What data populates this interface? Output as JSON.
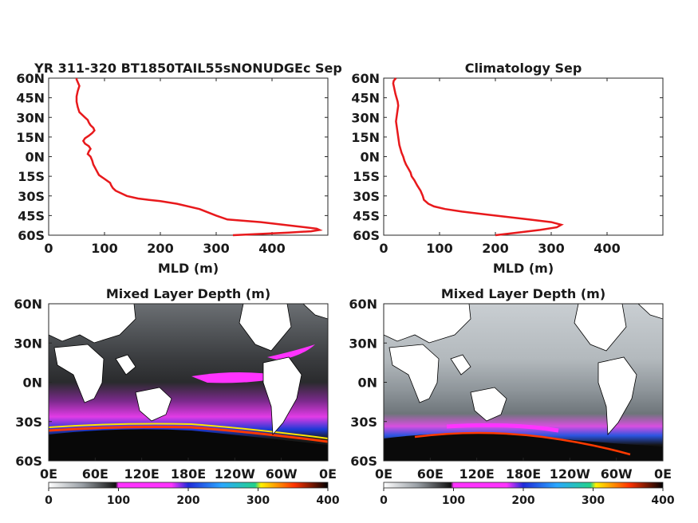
{
  "chart_data": [
    {
      "type": "line",
      "title": "YR 311-320 BT1850TAIL55sNONUDGEc Sep",
      "xlabel": "MLD (m)",
      "ylabel": "",
      "xlim": [
        0,
        500
      ],
      "ylim": [
        -60,
        60
      ],
      "x_ticks": [
        "0",
        "100",
        "200",
        "300",
        "400"
      ],
      "y_ticks": [
        "60N",
        "45N",
        "30N",
        "15N",
        "0N",
        "15S",
        "30S",
        "45S",
        "60S"
      ],
      "line_color": "#e8191c",
      "series": [
        {
          "x": [
            330,
            380,
            430,
            470,
            485,
            480,
            460,
            440,
            420,
            380,
            320,
            300,
            270,
            230,
            200,
            180,
            160,
            140,
            130,
            120,
            115,
            112,
            110,
            100,
            90,
            85,
            80,
            78,
            75,
            70,
            72,
            75,
            72,
            65,
            62,
            65,
            72,
            78,
            82,
            80,
            75,
            72,
            70,
            65,
            55,
            52,
            50,
            50,
            52,
            55,
            52,
            50,
            50
          ],
          "y": [
            -60,
            -59,
            -58,
            -57,
            -56,
            -55,
            -54,
            -53,
            -52,
            -50,
            -48,
            -45,
            -40,
            -36,
            -34,
            -33,
            -32,
            -30,
            -28,
            -26,
            -24,
            -22,
            -20,
            -17,
            -14,
            -10,
            -6,
            -3,
            0,
            2,
            4,
            6,
            8,
            10,
            12,
            14,
            16,
            18,
            20,
            22,
            24,
            26,
            28,
            30,
            34,
            38,
            42,
            46,
            50,
            54,
            57,
            59,
            60
          ]
        }
      ]
    },
    {
      "type": "line",
      "title": "Climatology Sep",
      "xlabel": "MLD (m)",
      "ylabel": "",
      "xlim": [
        0,
        500
      ],
      "ylim": [
        -60,
        60
      ],
      "x_ticks": [
        "0",
        "100",
        "200",
        "300",
        "400"
      ],
      "y_ticks": [
        "60N",
        "45N",
        "30N",
        "15N",
        "0N",
        "15S",
        "30S",
        "45S",
        "60S"
      ],
      "line_color": "#e8191c",
      "series": [
        {
          "x": [
            200,
            240,
            280,
            310,
            318,
            300,
            260,
            220,
            180,
            140,
            110,
            90,
            80,
            72,
            70,
            66,
            60,
            55,
            50,
            48,
            44,
            40,
            37,
            35,
            32,
            30,
            28,
            27,
            26,
            25,
            24,
            23,
            22,
            23,
            24,
            25,
            26,
            25,
            23,
            21,
            20,
            19,
            18,
            17,
            18,
            20,
            22
          ],
          "y": [
            -60,
            -58,
            -56,
            -54,
            -52,
            -50,
            -48,
            -46,
            -44,
            -42,
            -40,
            -38,
            -36,
            -33,
            -30,
            -26,
            -22,
            -18,
            -15,
            -12,
            -9,
            -6,
            -3,
            0,
            3,
            6,
            9,
            12,
            15,
            18,
            21,
            24,
            27,
            30,
            33,
            36,
            39,
            42,
            45,
            48,
            50,
            52,
            54,
            56,
            58,
            59,
            60
          ]
        }
      ]
    },
    {
      "type": "heatmap",
      "title": "Mixed Layer Depth (m)",
      "x_ticks": [
        "0E",
        "60E",
        "120E",
        "180E",
        "120W",
        "60W",
        "0E"
      ],
      "y_ticks": [
        "60N",
        "30N",
        "0N",
        "30S",
        "60S"
      ],
      "colorbar_ticks": [
        "0",
        "100",
        "200",
        "300",
        "400"
      ],
      "clim": [
        0,
        400
      ],
      "colorbar_stops": [
        "#ffffff",
        "#9aa0a6",
        "#111111",
        "#ff33ff",
        "#1f2bd9",
        "#2aa7ff",
        "#22d38a",
        "#fff200",
        "#ff3300",
        "#000000"
      ]
    },
    {
      "type": "heatmap",
      "title": "Mixed Layer Depth (m)",
      "x_ticks": [
        "0E",
        "60E",
        "120E",
        "180E",
        "120W",
        "60W",
        "0E"
      ],
      "y_ticks": [
        "60N",
        "30N",
        "0N",
        "30S",
        "60S"
      ],
      "colorbar_ticks": [
        "0",
        "100",
        "200",
        "300",
        "400"
      ],
      "clim": [
        0,
        400
      ],
      "colorbar_stops": [
        "#ffffff",
        "#9aa0a6",
        "#111111",
        "#ff33ff",
        "#1f2bd9",
        "#2aa7ff",
        "#22d38a",
        "#fff200",
        "#ff3300",
        "#000000"
      ]
    }
  ]
}
